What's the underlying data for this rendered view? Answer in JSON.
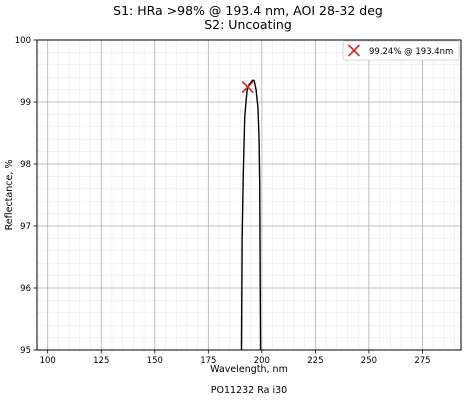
{
  "chart_data": {
    "type": "line",
    "title": "S1: HRa >98% @ 193.4 nm, AOI 28-32 deg",
    "subtitle": "S2: Uncoating",
    "xlabel": "Wavelength, nm",
    "ylabel": "Reflectance, %",
    "xlim": [
      95,
      293
    ],
    "ylim": [
      95,
      100
    ],
    "x_ticks": [
      100,
      125,
      150,
      175,
      200,
      225,
      250,
      275
    ],
    "y_ticks": [
      95,
      96,
      97,
      98,
      99,
      100
    ],
    "grid": true,
    "minor_grid": true,
    "legend_position": "top-right",
    "series": [
      {
        "color": "#000000",
        "x": [
          190.5,
          190.8,
          191.3,
          192.0,
          192.6,
          193.0,
          193.4,
          194.0,
          194.8,
          195.6,
          196.4,
          197.3,
          198.2,
          198.7,
          199.0,
          199.4
        ],
        "y": [
          95.0,
          96.8,
          97.8,
          98.75,
          99.0,
          99.15,
          99.24,
          99.28,
          99.31,
          99.35,
          99.35,
          99.2,
          98.9,
          98.4,
          97.7,
          95.0
        ]
      }
    ],
    "marker": {
      "x": 193.4,
      "y": 99.24,
      "symbol": "x",
      "color": "#d62728",
      "legend_label": "99.24% @ 193.4nm"
    },
    "footer": "PO11232 Ra i30"
  }
}
